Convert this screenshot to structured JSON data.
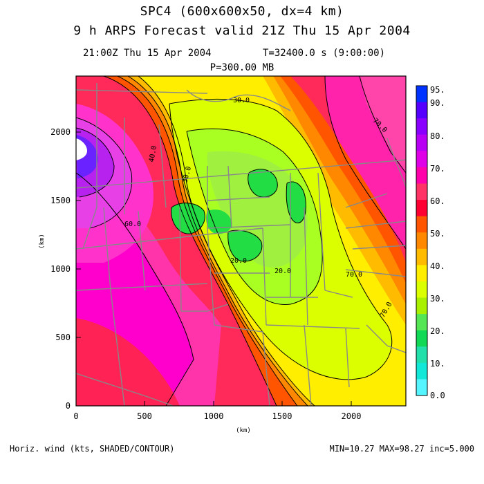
{
  "header": {
    "title": "SPC4 (600x600x50, dx=4 km)",
    "subtitle": "9 h ARPS Forecast valid 21Z Thu 15 Apr 2004",
    "time_line": "21:00Z Thu 15 Apr 2004",
    "t_line": "T=32400.0 s (9:00:00)",
    "level_line": "P=300.00 MB"
  },
  "axes": {
    "x_label": "(km)",
    "y_label": "(km)",
    "x_ticks": [
      "0",
      "500",
      "1000",
      "1500",
      "2000"
    ],
    "y_ticks": [
      "0",
      "500",
      "1000",
      "1500",
      "2000"
    ]
  },
  "colorbar": {
    "labels": [
      "95.",
      "90.",
      "80.",
      "70.",
      "60.",
      "50.",
      "40.",
      "30.",
      "20.",
      "10.",
      "0.0"
    ],
    "colors": [
      "#0033ff",
      "#5500ff",
      "#8a00ff",
      "#b800f5",
      "#e000e8",
      "#ff00aa",
      "#ff3366",
      "#ff0033",
      "#ff5500",
      "#ff8800",
      "#ffbb00",
      "#ffee00",
      "#dcff00",
      "#a8f000",
      "#55e655",
      "#11d855",
      "#22e0aa",
      "#11e8d8",
      "#55f5ff"
    ]
  },
  "map": {
    "contour_labels": [
      "30.0",
      "40.0",
      "30.0",
      "20.0",
      "20.0",
      "60.0",
      "70.0",
      "70.0",
      "70.0"
    ]
  },
  "footer": {
    "left": "Horiz. wind (kts, SHADED/CONTOUR)",
    "right": "MIN=10.27 MAX=98.27 inc=5.000"
  }
}
